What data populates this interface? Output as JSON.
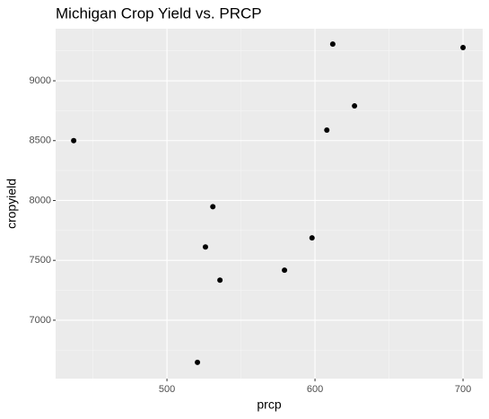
{
  "chart_data": {
    "type": "scatter",
    "title": "Michigan Crop Yield vs. PRCP",
    "x_label": "prcp",
    "y_label": "cropyield",
    "x": [
      437,
      612,
      700,
      626.7,
      608,
      531,
      598,
      526,
      579.4,
      535.8,
      520.6
    ],
    "values": [
      8500,
      9307,
      9278,
      8790,
      8588,
      7948,
      7688,
      7612,
      7418,
      7335,
      6648
    ],
    "color": "#000000",
    "xlim": [
      424.8,
      713.3
    ],
    "xticks": [
      500,
      600,
      700
    ],
    "xminor": [
      450,
      550,
      650
    ],
    "ylim": [
      6512,
      9435
    ],
    "yticks": [
      7000,
      7500,
      8000,
      8500,
      9000
    ],
    "yminor": [
      6750,
      7250,
      7750,
      8250,
      8750,
      9250
    ],
    "grid": true
  }
}
